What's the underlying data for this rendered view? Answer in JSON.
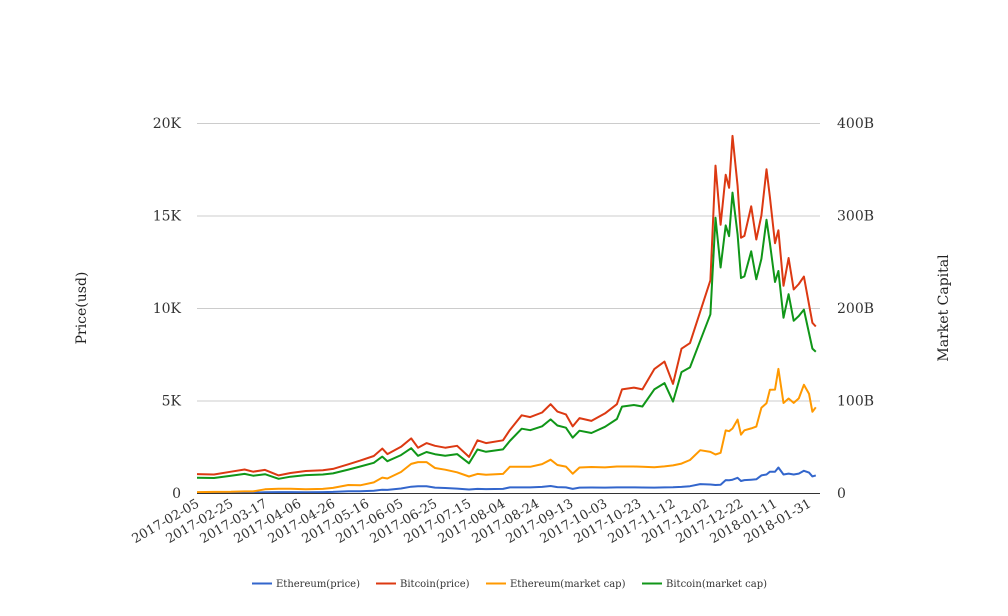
{
  "chart_data": {
    "type": "line",
    "title": "",
    "xlabel": "",
    "ylabel_left": "Price(usd)",
    "ylabel_right": "Market Capital",
    "ylim_left": [
      0,
      20000
    ],
    "ylim_right": [
      0,
      400
    ],
    "left_ticks": [
      {
        "v": 0,
        "label": "0"
      },
      {
        "v": 5000,
        "label": "5K"
      },
      {
        "v": 10000,
        "label": "10K"
      },
      {
        "v": 15000,
        "label": "15K"
      },
      {
        "v": 20000,
        "label": "20K"
      }
    ],
    "right_ticks": [
      {
        "v": 0,
        "label": "0"
      },
      {
        "v": 100,
        "label": "100B"
      },
      {
        "v": 200,
        "label": "200B"
      },
      {
        "v": 300,
        "label": "300B"
      },
      {
        "v": 400,
        "label": "400B"
      }
    ],
    "x_ticks": [
      "2017-02-05",
      "2017-02-25",
      "2017-03-17",
      "2017-04-06",
      "2017-04-26",
      "2017-05-16",
      "2017-06-05",
      "2017-06-25",
      "2017-07-15",
      "2017-08-04",
      "2017-08-24",
      "2017-09-13",
      "2017-10-03",
      "2017-10-23",
      "2017-11-12",
      "2017-12-02",
      "2017-12-22",
      "2018-01-11",
      "2018-01-31"
    ],
    "grid": true,
    "legend_position": "bottom",
    "dates": [
      "2017-02-05",
      "2017-02-15",
      "2017-02-25",
      "2017-03-05",
      "2017-03-10",
      "2017-03-17",
      "2017-03-25",
      "2017-04-01",
      "2017-04-10",
      "2017-04-20",
      "2017-04-26",
      "2017-05-05",
      "2017-05-12",
      "2017-05-20",
      "2017-05-25",
      "2017-05-28",
      "2017-06-05",
      "2017-06-11",
      "2017-06-15",
      "2017-06-20",
      "2017-06-25",
      "2017-07-01",
      "2017-07-08",
      "2017-07-15",
      "2017-07-20",
      "2017-07-25",
      "2017-08-04",
      "2017-08-08",
      "2017-08-15",
      "2017-08-20",
      "2017-08-27",
      "2017-09-01",
      "2017-09-05",
      "2017-09-10",
      "2017-09-14",
      "2017-09-18",
      "2017-09-25",
      "2017-10-03",
      "2017-10-10",
      "2017-10-13",
      "2017-10-20",
      "2017-10-25",
      "2017-11-01",
      "2017-11-07",
      "2017-11-12",
      "2017-11-17",
      "2017-11-22",
      "2017-11-28",
      "2017-12-04",
      "2017-12-07",
      "2017-12-10",
      "2017-12-13",
      "2017-12-15",
      "2017-12-17",
      "2017-12-20",
      "2017-12-22",
      "2017-12-24",
      "2017-12-28",
      "2017-12-31",
      "2018-01-03",
      "2018-01-06",
      "2018-01-08",
      "2018-01-11",
      "2018-01-13",
      "2018-01-16",
      "2018-01-19",
      "2018-01-22",
      "2018-01-25",
      "2018-01-28",
      "2018-01-31",
      "2018-02-02",
      "2018-02-04"
    ],
    "series": [
      {
        "name": "Ethereum(price)",
        "axis": "left",
        "color": "#3366cc",
        "values": [
          11,
          13,
          14,
          19,
          19,
          44,
          50,
          50,
          44,
          48,
          60,
          95,
          90,
          125,
          180,
          170,
          245,
          340,
          360,
          360,
          290,
          270,
          240,
          190,
          220,
          210,
          220,
          300,
          300,
          300,
          330,
          380,
          320,
          300,
          220,
          290,
          295,
          290,
          300,
          300,
          300,
          295,
          290,
          300,
          310,
          330,
          370,
          480,
          460,
          430,
          450,
          700,
          690,
          720,
          820,
          650,
          700,
          720,
          740,
          950,
          1000,
          1150,
          1150,
          1380,
          1000,
          1050,
          1000,
          1050,
          1200,
          1100,
          900,
          950
        ]
      },
      {
        "name": "Bitcoin(price)",
        "axis": "left",
        "color": "#dc3912",
        "values": [
          1020,
          1000,
          1150,
          1270,
          1150,
          1250,
          950,
          1080,
          1190,
          1230,
          1300,
          1550,
          1750,
          2000,
          2400,
          2100,
          2500,
          2950,
          2450,
          2700,
          2550,
          2450,
          2550,
          1950,
          2850,
          2700,
          2850,
          3400,
          4200,
          4100,
          4350,
          4800,
          4400,
          4250,
          3600,
          4050,
          3900,
          4300,
          4800,
          5600,
          5700,
          5600,
          6700,
          7100,
          5900,
          7800,
          8100,
          9800,
          11500,
          17700,
          14500,
          17200,
          16500,
          19300,
          16600,
          13800,
          13900,
          15500,
          13700,
          15000,
          17500,
          16000,
          13500,
          14200,
          11200,
          12700,
          11000,
          11300,
          11700,
          10200,
          9200,
          9000
        ]
      },
      {
        "name": "Ethereum(market cap)",
        "axis": "right",
        "color": "#ff9900",
        "values": [
          1.0,
          1.2,
          1.3,
          1.7,
          1.7,
          4.0,
          4.5,
          4.6,
          4.0,
          4.4,
          5.5,
          8.7,
          8.3,
          11.5,
          16.6,
          15.7,
          22.7,
          31.5,
          33.4,
          33.4,
          27,
          25.2,
          22.4,
          17.8,
          20.6,
          19.7,
          20.7,
          28.3,
          28.3,
          28.3,
          31.2,
          36,
          30.3,
          28.5,
          20.9,
          27.6,
          28.1,
          27.7,
          28.7,
          28.7,
          28.7,
          28.3,
          27.8,
          28.8,
          29.8,
          31.8,
          35.7,
          46.3,
          44.4,
          41.6,
          43.5,
          67.7,
          66.8,
          69.7,
          79.4,
          63,
          67.8,
          69.8,
          71.8,
          92.2,
          97.1,
          111.7,
          111.8,
          134.2,
          97.3,
          102.2,
          97.4,
          102.3,
          117,
          107.3,
          87.8,
          92.7
        ]
      },
      {
        "name": "Bitcoin(market cap)",
        "axis": "right",
        "color": "#109618",
        "values": [
          16.5,
          16.2,
          18.6,
          20.6,
          18.7,
          20.3,
          15.4,
          17.6,
          19.4,
          20.0,
          21.2,
          25.3,
          28.6,
          32.7,
          39.3,
          34.4,
          41.0,
          48.4,
          40.2,
          44.3,
          41.9,
          40.3,
          42.0,
          32.1,
          47.0,
          44.5,
          47.1,
          56.2,
          69.5,
          67.9,
          72.1,
          79.6,
          73.0,
          70.6,
          59.8,
          67.3,
          64.9,
          71.6,
          80.0,
          93.4,
          95.1,
          93.5,
          112.0,
          118.8,
          98.8,
          130.7,
          135.8,
          164.5,
          193.2,
          297.5,
          243.8,
          289.3,
          277.6,
          324.8,
          279.5,
          232.4,
          234.2,
          261.3,
          231.0,
          253.1,
          295.4,
          270.2,
          228.1,
          240.0,
          189.4,
          214.9,
          186.2,
          191.4,
          198.3,
          173.0,
          156.1,
          152.8
        ]
      }
    ]
  }
}
